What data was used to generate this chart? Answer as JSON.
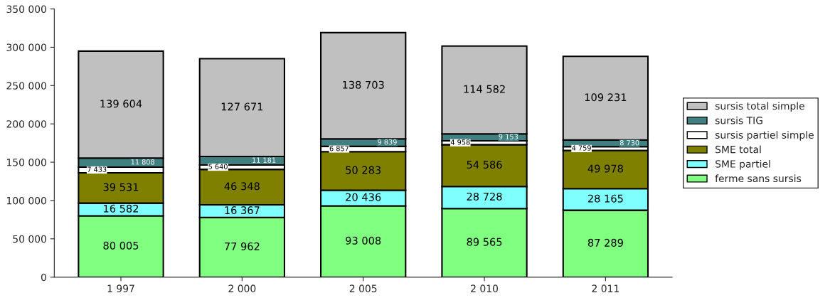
{
  "chart_data": {
    "type": "bar",
    "stacked": true,
    "categories": [
      "1 997",
      "2 000",
      "2 005",
      "2 010",
      "2 011"
    ],
    "series": [
      {
        "name": "ferme sans sursis",
        "color": "#80ff80",
        "values": [
          80005,
          77962,
          93008,
          89565,
          87289
        ],
        "value_labels": [
          "80 005",
          "77 962",
          "93 008",
          "89 565",
          "87 289"
        ]
      },
      {
        "name": "SME partiel",
        "color": "#80ffff",
        "values": [
          16582,
          16367,
          20436,
          28728,
          28165
        ],
        "value_labels": [
          "16 582",
          "16 367",
          "20 436",
          "28 728",
          "28 165"
        ]
      },
      {
        "name": "SME total",
        "color": "#808000",
        "values": [
          39531,
          46348,
          50283,
          54586,
          49978
        ],
        "value_labels": [
          "39 531",
          "46 348",
          "50 283",
          "54 586",
          "49 978"
        ]
      },
      {
        "name": "sursis partiel simple",
        "color": "#ffffff",
        "values": [
          7433,
          5640,
          6857,
          4958,
          4759
        ],
        "value_labels": [
          "7 433",
          "5 640",
          "6 857",
          "4 958",
          "4 759"
        ]
      },
      {
        "name": "sursis TIG",
        "color": "#408080",
        "values": [
          11808,
          11181,
          9839,
          9153,
          8730
        ],
        "value_labels": [
          "11 808",
          "11 181",
          "9 839",
          "9 153",
          "8 730"
        ]
      },
      {
        "name": "sursis total simple",
        "color": "#c0c0c0",
        "values": [
          139604,
          127671,
          138703,
          114582,
          109231
        ],
        "value_labels": [
          "139 604",
          "127 671",
          "138 703",
          "114 582",
          "109 231"
        ]
      }
    ],
    "ylim": [
      0,
      350000
    ],
    "yticks": [
      0,
      {
        "value": 50000,
        "label": "50 000"
      },
      {
        "value": 100000,
        "label": "100 000"
      },
      {
        "value": 150000,
        "label": "150 000"
      },
      {
        "value": 200000,
        "label": "200 000"
      },
      {
        "value": 250000,
        "label": "250 000"
      },
      {
        "value": 300000,
        "label": "300 000"
      },
      {
        "value": 350000,
        "label": "350 000"
      }
    ],
    "grid": false,
    "legend": "right"
  }
}
